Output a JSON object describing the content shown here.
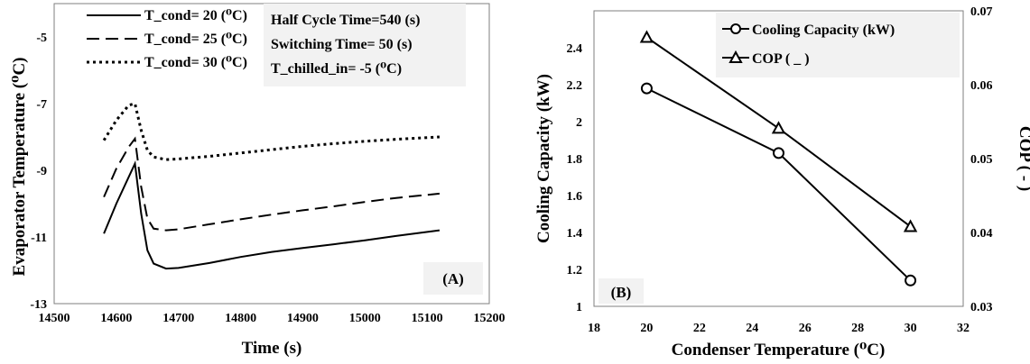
{
  "chart_data": [
    {
      "type": "line",
      "panel_label": "(A)",
      "xlabel": "Time (s)",
      "ylabel": "Evaporator Temperature (⁰C)",
      "xlim": [
        14500,
        15200
      ],
      "ylim": [
        -13,
        -4
      ],
      "x_ticks": [
        "14500",
        "14600",
        "14700",
        "14800",
        "14900",
        "15000",
        "15100",
        "15200"
      ],
      "y_ticks": [
        "-5",
        "-7",
        "-9",
        "-11",
        "-13"
      ],
      "grid": false,
      "legend_position": "top-left",
      "annotations": [
        "Half Cycle Time=540 (s)",
        "Switching Time= 50 (s)",
        "T_chilled_in= -5 (⁰C)"
      ],
      "series": [
        {
          "name": "T_cond= 20 (⁰C)",
          "style": "solid",
          "x": [
            14580,
            14600,
            14620,
            14630,
            14640,
            14650,
            14660,
            14680,
            14700,
            14750,
            14800,
            14850,
            14900,
            14950,
            15000,
            15050,
            15120
          ],
          "y": [
            -10.9,
            -10.0,
            -9.2,
            -8.8,
            -10.3,
            -11.4,
            -11.8,
            -11.95,
            -11.93,
            -11.78,
            -11.6,
            -11.45,
            -11.33,
            -11.22,
            -11.1,
            -10.97,
            -10.8
          ]
        },
        {
          "name": "T_cond= 25 (⁰C)",
          "style": "dashed",
          "x": [
            14580,
            14600,
            14620,
            14630,
            14640,
            14650,
            14660,
            14680,
            14700,
            14750,
            14800,
            14850,
            14900,
            14950,
            15000,
            15050,
            15120
          ],
          "y": [
            -9.8,
            -8.95,
            -8.3,
            -8.05,
            -9.5,
            -10.45,
            -10.75,
            -10.8,
            -10.77,
            -10.62,
            -10.47,
            -10.33,
            -10.2,
            -10.08,
            -9.95,
            -9.83,
            -9.7
          ]
        },
        {
          "name": "T_cond= 30 (⁰C)",
          "style": "dotted",
          "x": [
            14580,
            14600,
            14620,
            14630,
            14640,
            14650,
            14660,
            14680,
            14700,
            14750,
            14800,
            14850,
            14900,
            14950,
            15000,
            15050,
            15120
          ],
          "y": [
            -8.1,
            -7.5,
            -7.05,
            -7.0,
            -7.8,
            -8.4,
            -8.6,
            -8.68,
            -8.66,
            -8.58,
            -8.48,
            -8.38,
            -8.28,
            -8.2,
            -8.13,
            -8.07,
            -8.0
          ]
        }
      ]
    },
    {
      "type": "line",
      "panel_label": "(B)",
      "xlabel": "Condenser Temperature (⁰C)",
      "ylabel": "Cooling Capacity (kW)",
      "y2label": "COP ( - )",
      "xlim": [
        18,
        32
      ],
      "ylim": [
        1,
        2.6
      ],
      "y2lim": [
        0.03,
        0.07
      ],
      "x_ticks": [
        "18",
        "20",
        "22",
        "24",
        "26",
        "28",
        "30",
        "32"
      ],
      "y_ticks": [
        "1",
        "1.2",
        "1.4",
        "1.6",
        "1.8",
        "2",
        "2.2",
        "2.4"
      ],
      "y2_ticks": [
        "0.03",
        "0.04",
        "0.05",
        "0.06",
        "0.07"
      ],
      "grid": false,
      "legend_position": "top-right",
      "series": [
        {
          "name": "Cooling Capacity (kW)",
          "marker": "circle",
          "axis": "left",
          "x": [
            20,
            25,
            30
          ],
          "y": [
            2.18,
            1.83,
            1.14
          ]
        },
        {
          "name": "COP ( _ )",
          "marker": "triangle",
          "axis": "right",
          "x": [
            20,
            25,
            30
          ],
          "y": [
            0.0664,
            0.0541,
            0.0408
          ]
        }
      ]
    }
  ]
}
